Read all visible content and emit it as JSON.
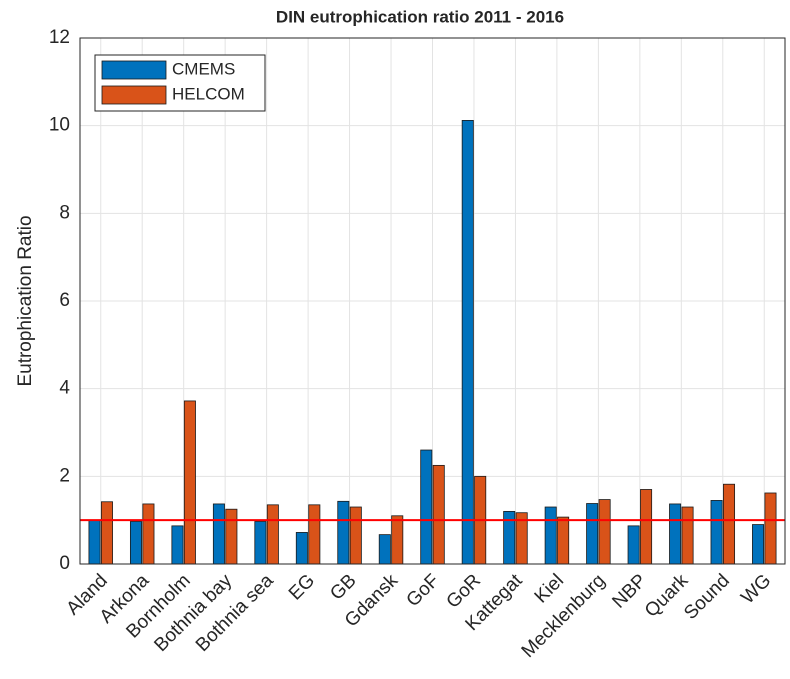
{
  "chart_data": {
    "type": "bar",
    "title": "DIN eutrophication ratio 2011 - 2016",
    "y_label": "Eutrophication Ratio",
    "categories": [
      "Aland",
      "Arkona",
      "Bornholm",
      "Bothnia bay",
      "Bothnia sea",
      "EG",
      "GB",
      "Gdansk",
      "GoF",
      "GoR",
      "Kattegat",
      "Kiel",
      "Mecklenburg",
      "NBP",
      "Quark",
      "Sound",
      "WG"
    ],
    "series": [
      {
        "name": "CMEMS",
        "color": "#0072bd",
        "values": [
          1.0,
          0.97,
          0.87,
          1.37,
          0.97,
          0.72,
          1.43,
          0.67,
          2.6,
          10.12,
          1.2,
          1.3,
          1.38,
          0.87,
          1.37,
          1.45,
          0.9
        ]
      },
      {
        "name": "HELCOM",
        "color": "#d95319",
        "values": [
          1.42,
          1.37,
          3.72,
          1.25,
          1.35,
          1.35,
          1.3,
          1.1,
          2.25,
          2.0,
          1.17,
          1.07,
          1.47,
          1.7,
          1.3,
          1.82,
          1.62
        ]
      }
    ],
    "reference_line": {
      "value": 1,
      "color": "#ff0000"
    },
    "ylim": [
      0,
      12
    ],
    "yticks": [
      0,
      2,
      4,
      6,
      8,
      10,
      12
    ],
    "grid": true,
    "legend": "top-left"
  }
}
